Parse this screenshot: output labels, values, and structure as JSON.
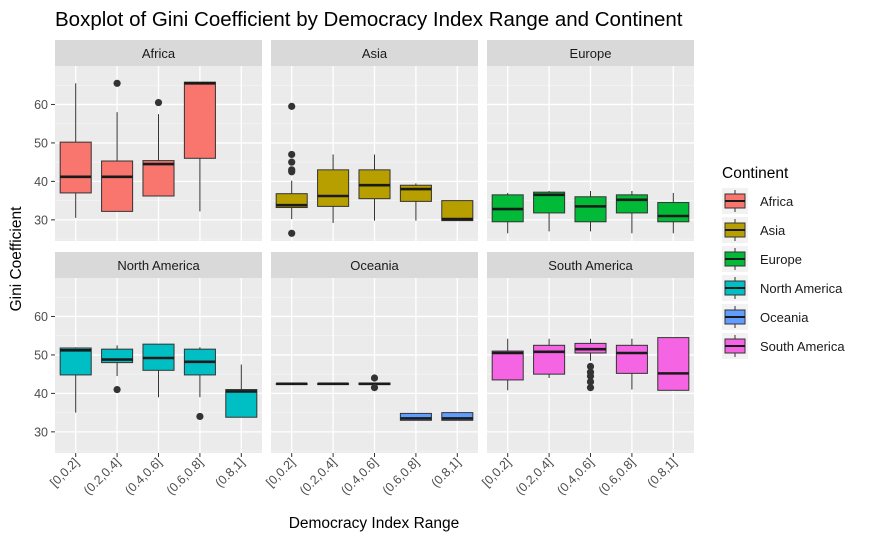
{
  "chart_data": {
    "type": "boxplot",
    "title": "Boxplot of Gini Coefficient by Democracy Index Range and Continent",
    "xlabel": "Democracy Index Range",
    "ylabel": "Gini Coefficient",
    "categories": [
      "[0,0.2]",
      "(0.2,0.4]",
      "(0.4,0.6]",
      "(0.6,0.8]",
      "(0.8,1]"
    ],
    "y_ticks": [
      30,
      40,
      50,
      60
    ],
    "ylim": [
      24.5,
      70
    ],
    "grid": true,
    "legend": {
      "title": "Continent",
      "position": "right",
      "entries": [
        {
          "name": "Africa",
          "color": "#F8766D"
        },
        {
          "name": "Asia",
          "color": "#B79F00"
        },
        {
          "name": "Europe",
          "color": "#00BA38"
        },
        {
          "name": "North America",
          "color": "#00BFC4"
        },
        {
          "name": "Oceania",
          "color": "#619CFF"
        },
        {
          "name": "South America",
          "color": "#F564E3"
        }
      ]
    },
    "panels": [
      {
        "name": "Africa",
        "color": "#F8766D",
        "boxes": [
          {
            "category": "[0,0.2]",
            "lower": 30.5,
            "q1": 37,
            "median": 41.2,
            "q3": 50.2,
            "upper": 65.5,
            "outliers": []
          },
          {
            "category": "(0.2,0.4]",
            "lower": 32.2,
            "q1": 32.2,
            "median": 41.2,
            "q3": 45.3,
            "upper": 58,
            "outliers": [
              65.5
            ]
          },
          {
            "category": "(0.4,0.6]",
            "lower": 36.2,
            "q1": 36.2,
            "median": 44.5,
            "q3": 45.4,
            "upper": 57.5,
            "outliers": [
              60.5
            ]
          },
          {
            "category": "(0.6,0.8]",
            "lower": 32.2,
            "q1": 46,
            "median": 65.5,
            "q3": 65.8,
            "upper": 65.8,
            "outliers": []
          }
        ]
      },
      {
        "name": "Asia",
        "color": "#B79F00",
        "boxes": [
          {
            "category": "[0,0.2]",
            "lower": 30.2,
            "q1": 33.2,
            "median": 33.8,
            "q3": 36.8,
            "upper": 40.2,
            "outliers": [
              59.5,
              47,
              45,
              43,
              42.5,
              26.5
            ]
          },
          {
            "category": "(0.2,0.4]",
            "lower": 29.2,
            "q1": 33.5,
            "median": 36.2,
            "q3": 43,
            "upper": 47,
            "outliers": []
          },
          {
            "category": "(0.4,0.6]",
            "lower": 29.8,
            "q1": 35.5,
            "median": 39,
            "q3": 43,
            "upper": 47,
            "outliers": []
          },
          {
            "category": "(0.6,0.8]",
            "lower": 29.8,
            "q1": 34.8,
            "median": 38,
            "q3": 39,
            "upper": 39.5,
            "outliers": []
          },
          {
            "category": "(0.8,1]",
            "lower": 29.8,
            "q1": 29.8,
            "median": 30.2,
            "q3": 35,
            "upper": 35,
            "outliers": []
          }
        ]
      },
      {
        "name": "Europe",
        "color": "#00BA38",
        "boxes": [
          {
            "category": "[0,0.2]",
            "lower": 26.5,
            "q1": 29.5,
            "median": 32.8,
            "q3": 36.5,
            "upper": 37,
            "outliers": []
          },
          {
            "category": "(0.2,0.4]",
            "lower": 27,
            "q1": 31.8,
            "median": 36.5,
            "q3": 37.2,
            "upper": 37.5,
            "outliers": []
          },
          {
            "category": "(0.4,0.6]",
            "lower": 27,
            "q1": 29.5,
            "median": 33.5,
            "q3": 36,
            "upper": 37.5,
            "outliers": []
          },
          {
            "category": "(0.6,0.8]",
            "lower": 26.5,
            "q1": 31.8,
            "median": 35.2,
            "q3": 36.5,
            "upper": 37.5,
            "outliers": []
          },
          {
            "category": "(0.8,1]",
            "lower": 26.5,
            "q1": 29.5,
            "median": 31,
            "q3": 34.5,
            "upper": 37,
            "outliers": []
          }
        ]
      },
      {
        "name": "North America",
        "color": "#00BFC4",
        "boxes": [
          {
            "category": "[0,0.2]",
            "lower": 35,
            "q1": 44.8,
            "median": 51.2,
            "q3": 51.8,
            "upper": 52,
            "outliers": []
          },
          {
            "category": "(0.2,0.4]",
            "lower": 44.5,
            "q1": 48,
            "median": 48.8,
            "q3": 51.5,
            "upper": 52.5,
            "outliers": [
              41
            ]
          },
          {
            "category": "(0.4,0.6]",
            "lower": 39,
            "q1": 46,
            "median": 49.2,
            "q3": 52.8,
            "upper": 52.8,
            "outliers": []
          },
          {
            "category": "(0.6,0.8]",
            "lower": 39,
            "q1": 44.8,
            "median": 48.2,
            "q3": 51.5,
            "upper": 52,
            "outliers": [
              34
            ]
          },
          {
            "category": "(0.8,1]",
            "lower": 33.8,
            "q1": 33.8,
            "median": 40.5,
            "q3": 41,
            "upper": 47.5,
            "outliers": []
          }
        ]
      },
      {
        "name": "Oceania",
        "color": "#619CFF",
        "boxes": [
          {
            "category": "[0,0.2]",
            "lower": 42.5,
            "q1": 42.5,
            "median": 42.5,
            "q3": 42.5,
            "upper": 42.5,
            "outliers": []
          },
          {
            "category": "(0.2,0.4]",
            "lower": 42.5,
            "q1": 42.5,
            "median": 42.5,
            "q3": 42.5,
            "upper": 42.5,
            "outliers": []
          },
          {
            "category": "(0.4,0.6]",
            "lower": 42.5,
            "q1": 42.3,
            "median": 42.5,
            "q3": 42.7,
            "upper": 42.7,
            "outliers": [
              44,
              41.5
            ]
          },
          {
            "category": "(0.6,0.8]",
            "lower": 33,
            "q1": 33,
            "median": 33.5,
            "q3": 34.8,
            "upper": 34.8,
            "outliers": []
          },
          {
            "category": "(0.8,1]",
            "lower": 33,
            "q1": 33,
            "median": 33.5,
            "q3": 35,
            "upper": 35,
            "outliers": []
          }
        ]
      },
      {
        "name": "South America",
        "color": "#F564E3",
        "boxes": [
          {
            "category": "[0,0.2]",
            "lower": 40.8,
            "q1": 43.5,
            "median": 50.5,
            "q3": 51,
            "upper": 54.2,
            "outliers": []
          },
          {
            "category": "(0.2,0.4]",
            "lower": 44,
            "q1": 45,
            "median": 50.8,
            "q3": 52.5,
            "upper": 54.2,
            "outliers": []
          },
          {
            "category": "(0.4,0.6]",
            "lower": 48.5,
            "q1": 50.5,
            "median": 51.5,
            "q3": 53,
            "upper": 54.2,
            "outliers": [
              47,
              45.5,
              44.5,
              43,
              41.5
            ]
          },
          {
            "category": "(0.6,0.8]",
            "lower": 41,
            "q1": 45.2,
            "median": 50.5,
            "q3": 52.5,
            "upper": 54.2,
            "outliers": []
          },
          {
            "category": "(0.8,1]",
            "lower": 40.8,
            "q1": 40.8,
            "median": 45.2,
            "q3": 54.5,
            "upper": 54.5,
            "outliers": []
          }
        ]
      }
    ]
  }
}
